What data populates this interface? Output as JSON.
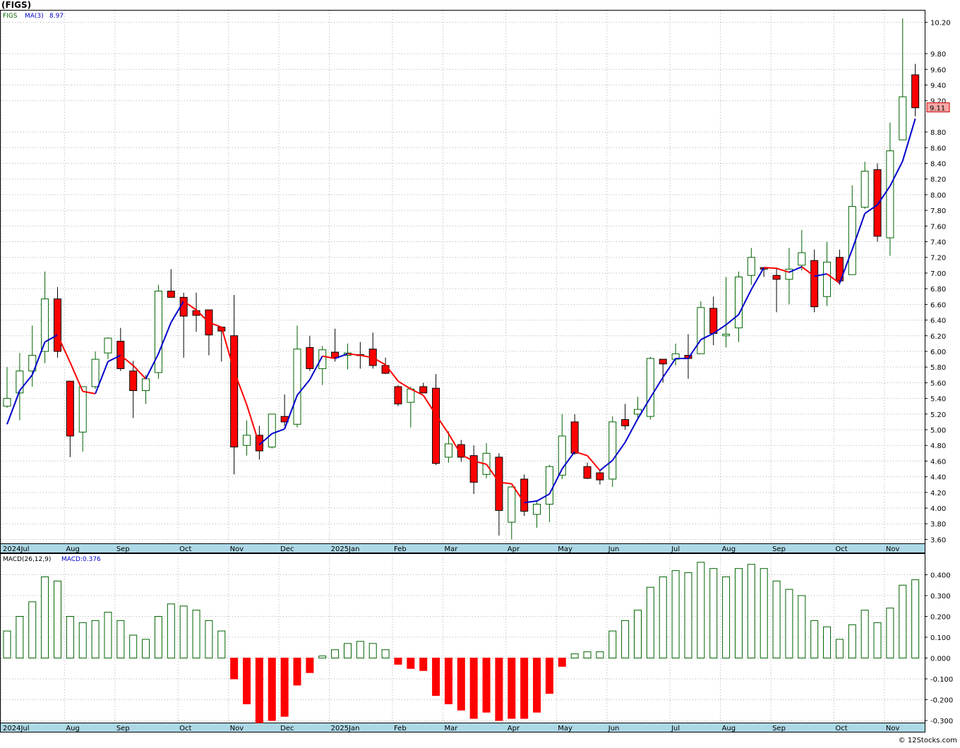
{
  "header": {
    "title": "(FIGS)"
  },
  "price_panel": {
    "legend_symbol": "FIGS",
    "ma_label": "MA(3)",
    "ma_value": "8.97",
    "last_price_label": "9.11"
  },
  "macd_panel": {
    "label": "MACD(26,12,9)",
    "value_label": "MACD:0.376"
  },
  "footer": {
    "watermark": "© 12Stocks.com"
  },
  "colors": {
    "up_candle": "#006400",
    "down_candle": "#ff0000",
    "ma_up": "#0000cc",
    "ma_down": "#ff0000",
    "axis_band": "#add8e6",
    "grid": "#b0b0b0",
    "price_box": "#f4a7a7"
  },
  "chart_data": [
    {
      "type": "candlestick",
      "title": "(FIGS)",
      "series_names": [
        "FIGS",
        "MA(3)"
      ],
      "x_tick_labels": [
        "2024Jul",
        "Aug",
        "Sep",
        "Oct",
        "Nov",
        "Dec",
        "2025Jan",
        "Feb",
        "Mar",
        "Apr",
        "May",
        "Jun",
        "Jul",
        "Aug",
        "Sep",
        "Oct",
        "Nov"
      ],
      "x_tick_index": [
        0,
        5,
        9,
        14,
        18,
        22,
        26,
        31,
        35,
        40,
        44,
        48,
        53,
        57,
        61,
        66,
        70
      ],
      "y_ticks": [
        3.6,
        3.8,
        4.0,
        4.2,
        4.4,
        4.6,
        4.8,
        5.0,
        5.2,
        5.4,
        5.6,
        5.8,
        6.0,
        6.2,
        6.4,
        6.6,
        6.8,
        7.0,
        7.2,
        7.4,
        7.6,
        7.8,
        8.0,
        8.2,
        8.4,
        8.6,
        8.8,
        9.2,
        9.4,
        9.6,
        9.8,
        10.2
      ],
      "ylim": [
        3.55,
        10.35
      ],
      "grid": true,
      "ohlc": [
        [
          5.3,
          5.8,
          5.28,
          5.4
        ],
        [
          5.47,
          5.98,
          5.12,
          5.75
        ],
        [
          5.75,
          6.33,
          5.55,
          5.95
        ],
        [
          6.0,
          7.02,
          5.85,
          6.67
        ],
        [
          6.67,
          6.82,
          5.92,
          6.0
        ],
        [
          5.62,
          5.62,
          4.65,
          4.92
        ],
        [
          4.97,
          5.55,
          4.72,
          5.55
        ],
        [
          5.55,
          6.0,
          5.52,
          5.9
        ],
        [
          5.98,
          6.18,
          5.9,
          6.17
        ],
        [
          6.13,
          6.3,
          5.75,
          5.78
        ],
        [
          5.75,
          5.88,
          5.15,
          5.5
        ],
        [
          5.5,
          5.7,
          5.33,
          5.65
        ],
        [
          5.73,
          6.85,
          5.65,
          6.77
        ],
        [
          6.77,
          7.05,
          6.7,
          6.69
        ],
        [
          6.69,
          6.75,
          5.92,
          6.45
        ],
        [
          6.52,
          6.75,
          6.25,
          6.46
        ],
        [
          6.53,
          6.53,
          5.95,
          6.21
        ],
        [
          6.31,
          6.31,
          5.87,
          6.26
        ],
        [
          6.2,
          6.72,
          4.43,
          4.78
        ],
        [
          4.8,
          5.12,
          4.67,
          4.93
        ],
        [
          4.93,
          5.05,
          4.62,
          4.73
        ],
        [
          4.78,
          5.2,
          4.76,
          5.2
        ],
        [
          5.17,
          5.45,
          5.05,
          5.1
        ],
        [
          5.07,
          6.33,
          5.03,
          6.03
        ],
        [
          6.05,
          6.2,
          5.75,
          5.78
        ],
        [
          5.78,
          6.07,
          5.57,
          6.02
        ],
        [
          5.99,
          6.29,
          5.87,
          5.92
        ],
        [
          5.95,
          6.1,
          5.77,
          5.98
        ],
        [
          5.96,
          6.12,
          5.78,
          5.95
        ],
        [
          6.03,
          6.24,
          5.78,
          5.82
        ],
        [
          5.82,
          5.92,
          5.71,
          5.72
        ],
        [
          5.55,
          5.57,
          5.3,
          5.33
        ],
        [
          5.35,
          5.55,
          5.03,
          5.52
        ],
        [
          5.55,
          5.6,
          5.48,
          5.47
        ],
        [
          5.53,
          5.71,
          4.55,
          4.57
        ],
        [
          4.65,
          4.98,
          4.58,
          4.82
        ],
        [
          4.81,
          4.87,
          4.59,
          4.65
        ],
        [
          4.67,
          4.8,
          4.18,
          4.33
        ],
        [
          4.43,
          4.83,
          4.38,
          4.7
        ],
        [
          4.65,
          4.7,
          3.65,
          3.97
        ],
        [
          3.82,
          4.28,
          3.6,
          4.27
        ],
        [
          4.37,
          4.43,
          3.9,
          3.96
        ],
        [
          3.92,
          4.1,
          3.75,
          4.05
        ],
        [
          4.05,
          4.55,
          3.82,
          4.53
        ],
        [
          4.42,
          5.2,
          4.37,
          4.92
        ],
        [
          5.1,
          5.2,
          4.68,
          4.7
        ],
        [
          4.53,
          4.58,
          4.37,
          4.38
        ],
        [
          4.45,
          4.48,
          4.3,
          4.36
        ],
        [
          4.37,
          5.17,
          4.27,
          5.1
        ],
        [
          5.13,
          5.33,
          5.0,
          5.05
        ],
        [
          5.2,
          5.42,
          5.12,
          5.26
        ],
        [
          5.17,
          5.93,
          5.13,
          5.91
        ],
        [
          5.9,
          5.9,
          5.6,
          5.84
        ],
        [
          5.9,
          6.1,
          5.82,
          5.97
        ],
        [
          5.95,
          6.22,
          5.65,
          5.91
        ],
        [
          5.97,
          6.64,
          5.97,
          6.56
        ],
        [
          6.55,
          6.7,
          6.08,
          6.23
        ],
        [
          6.2,
          6.95,
          6.05,
          6.22
        ],
        [
          6.3,
          7.02,
          6.12,
          6.95
        ],
        [
          6.97,
          7.32,
          6.85,
          7.2
        ],
        [
          7.07,
          7.07,
          6.95,
          7.05
        ],
        [
          6.97,
          7.07,
          6.5,
          6.92
        ],
        [
          6.92,
          7.32,
          6.6,
          7.05
        ],
        [
          7.1,
          7.55,
          7.03,
          7.26
        ],
        [
          7.16,
          7.3,
          6.5,
          6.57
        ],
        [
          6.7,
          7.4,
          6.58,
          7.14
        ],
        [
          7.2,
          7.3,
          6.85,
          6.9
        ],
        [
          6.98,
          8.12,
          6.98,
          7.85
        ],
        [
          7.84,
          8.42,
          7.82,
          8.3
        ],
        [
          8.32,
          8.4,
          7.4,
          7.47
        ],
        [
          7.45,
          8.92,
          7.22,
          8.56
        ],
        [
          8.7,
          10.25,
          8.7,
          9.25
        ],
        [
          9.53,
          9.67,
          9.0,
          9.11
        ]
      ],
      "ma3": [
        5.07,
        5.5,
        5.7,
        6.12,
        6.21,
        5.86,
        5.49,
        5.46,
        5.87,
        5.95,
        5.82,
        5.65,
        5.97,
        6.37,
        6.64,
        6.53,
        6.37,
        6.31,
        5.75,
        5.32,
        4.81,
        4.95,
        5.01,
        5.44,
        5.64,
        5.94,
        5.91,
        5.97,
        5.95,
        5.92,
        5.83,
        5.62,
        5.52,
        5.44,
        5.19,
        4.95,
        4.68,
        4.6,
        4.56,
        4.33,
        4.31,
        4.07,
        4.09,
        4.18,
        4.5,
        4.72,
        4.67,
        4.48,
        4.61,
        4.84,
        5.14,
        5.41,
        5.67,
        5.91,
        5.91,
        6.15,
        6.23,
        6.34,
        6.47,
        6.79,
        7.07,
        7.06,
        7.01,
        7.08,
        6.96,
        6.99,
        6.87,
        7.3,
        7.76,
        7.87,
        8.11,
        8.43,
        8.97
      ],
      "macd": [
        0.13,
        0.2,
        0.27,
        0.39,
        0.37,
        0.2,
        0.17,
        0.18,
        0.22,
        0.18,
        0.11,
        0.09,
        0.2,
        0.26,
        0.25,
        0.23,
        0.18,
        0.13,
        -0.1,
        -0.22,
        -0.31,
        -0.3,
        -0.28,
        -0.13,
        -0.07,
        0.01,
        0.04,
        0.07,
        0.08,
        0.07,
        0.04,
        -0.03,
        -0.05,
        -0.06,
        -0.18,
        -0.22,
        -0.25,
        -0.29,
        -0.26,
        -0.3,
        -0.29,
        -0.29,
        -0.26,
        -0.17,
        -0.04,
        0.02,
        0.03,
        0.03,
        0.13,
        0.18,
        0.23,
        0.34,
        0.39,
        0.42,
        0.41,
        0.46,
        0.43,
        0.39,
        0.43,
        0.45,
        0.43,
        0.37,
        0.33,
        0.3,
        0.18,
        0.15,
        0.09,
        0.16,
        0.23,
        0.17,
        0.24,
        0.35,
        0.376
      ],
      "last_price": 9.11
    },
    {
      "type": "bar",
      "title": "MACD(26,12,9)",
      "y_ticks": [
        -0.3,
        -0.2,
        -0.1,
        0.0,
        0.1,
        0.2,
        0.3,
        0.4
      ],
      "ylim": [
        -0.31,
        0.5
      ],
      "grid": true
    }
  ]
}
